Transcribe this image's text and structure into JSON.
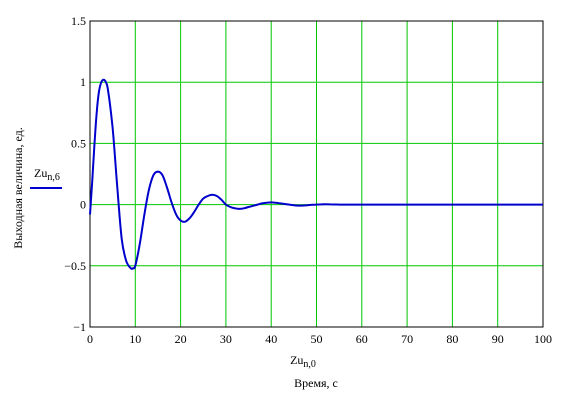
{
  "chart_data": {
    "type": "line",
    "xlim": [
      0,
      100
    ],
    "ylim": [
      -1,
      1.5
    ],
    "x_ticks": [
      "0",
      "10",
      "20",
      "30",
      "40",
      "50",
      "60",
      "70",
      "80",
      "90",
      "100"
    ],
    "y_ticks": [
      "1.5",
      "1",
      "0.5",
      "0",
      "−0.5",
      "−1"
    ],
    "x_tick_values": [
      0,
      10,
      20,
      30,
      40,
      50,
      60,
      70,
      80,
      90,
      100
    ],
    "y_tick_values": [
      1.5,
      1,
      0.5,
      0,
      -0.5,
      -1
    ],
    "xlabel_var": "Zu",
    "xlabel_sub": "n,0",
    "xlabel": "Время, с",
    "ylabel": "Выходная величина, ед.",
    "grid": true,
    "grid_color": "#00c800",
    "line_color": "#0000cc",
    "legend": {
      "name": "Zu",
      "sub": "n,6",
      "placement": "left"
    },
    "series": [
      {
        "name": "Zu n,6",
        "x": [
          0,
          0.5,
          1,
          1.5,
          2,
          2.5,
          3,
          3.5,
          4,
          5,
          6,
          7,
          8,
          9,
          9.5,
          10,
          11,
          12,
          13,
          14,
          15,
          16,
          17,
          18,
          19,
          20,
          21,
          22,
          23,
          24,
          25,
          26,
          27,
          28,
          29,
          30,
          31,
          32,
          33,
          34,
          35,
          36,
          37,
          38,
          39,
          40,
          41,
          42,
          43,
          44,
          45,
          46,
          47,
          48,
          49,
          50,
          51,
          52,
          53,
          54,
          55,
          56,
          58,
          60,
          65,
          70,
          75,
          80,
          85,
          90,
          95,
          100
        ],
        "y": [
          -0.08,
          0.2,
          0.5,
          0.76,
          0.93,
          1.0,
          1.02,
          1.0,
          0.93,
          0.62,
          0.15,
          -0.28,
          -0.46,
          -0.52,
          -0.52,
          -0.5,
          -0.32,
          -0.08,
          0.12,
          0.24,
          0.27,
          0.24,
          0.14,
          0.02,
          -0.08,
          -0.13,
          -0.14,
          -0.11,
          -0.06,
          0.0,
          0.05,
          0.07,
          0.08,
          0.07,
          0.04,
          0.0,
          -0.02,
          -0.03,
          -0.035,
          -0.03,
          -0.02,
          -0.01,
          0.0,
          0.01,
          0.015,
          0.018,
          0.015,
          0.01,
          0.005,
          0.0,
          -0.005,
          -0.008,
          -0.008,
          -0.005,
          -0.002,
          0.0,
          0.002,
          0.003,
          0.002,
          0.001,
          0.0,
          0.0,
          0.0,
          0.0,
          0.0,
          0.0,
          0.0,
          0.0,
          0.0,
          0.0,
          0.0,
          0.0
        ]
      }
    ]
  }
}
